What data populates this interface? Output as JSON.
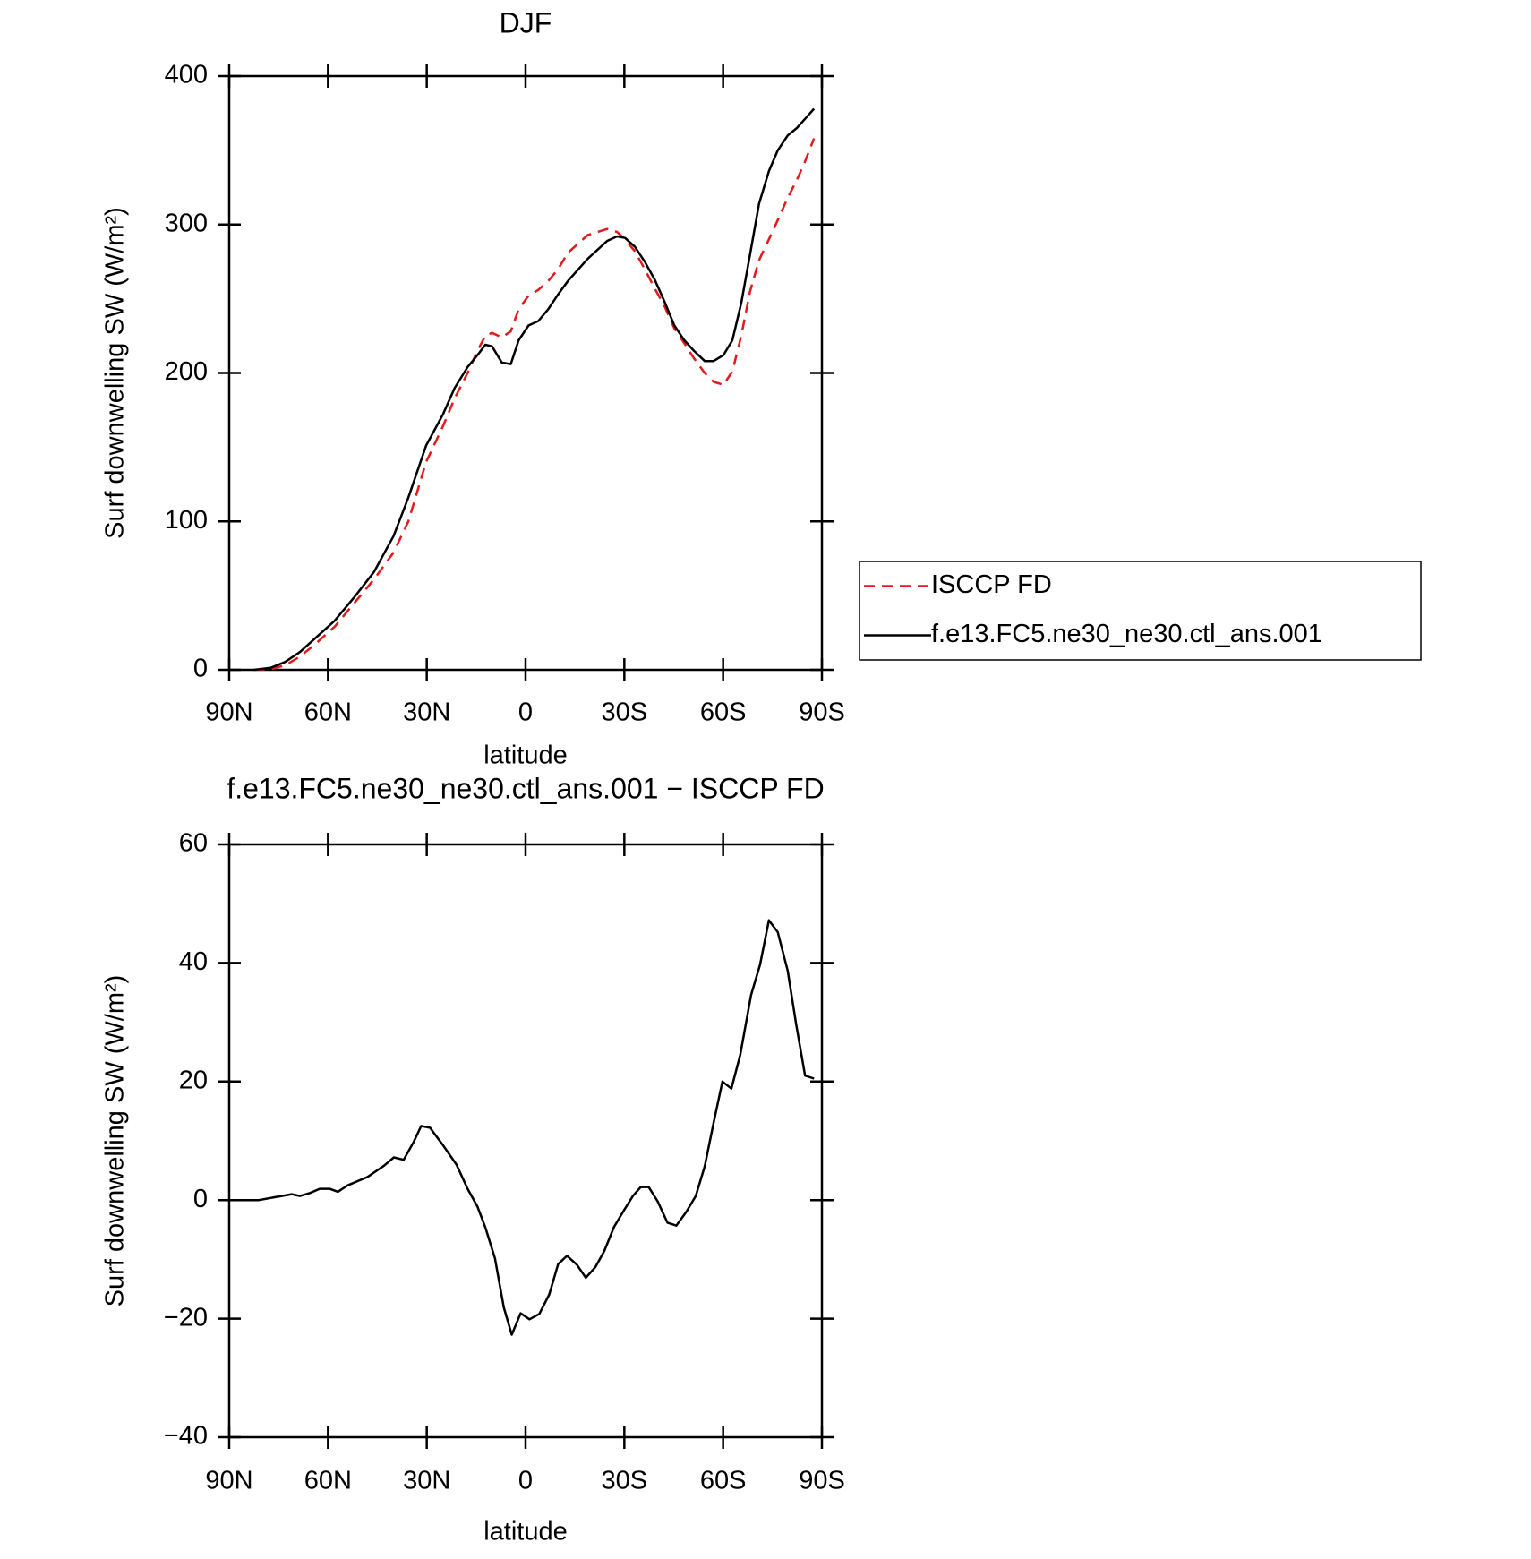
{
  "chart_data": [
    {
      "type": "line",
      "title": "DJF",
      "xlabel": "latitude",
      "ylabel": "Surf downwelling SW (W/m²)",
      "x": [
        82.5,
        77.4,
        73.0,
        68.5,
        64.0,
        58.0,
        52.0,
        46.0,
        40.1,
        35.6,
        30.2,
        25.1,
        21.5,
        17.6,
        14.6,
        12.2,
        10.2,
        7.2,
        4.5,
        2.1,
        -0.9,
        -3.9,
        -6.9,
        -9.9,
        -12.9,
        -18.9,
        -24.8,
        -27.8,
        -30.2,
        -33.2,
        -36.2,
        -39.2,
        -42.2,
        -45.2,
        -48.2,
        -51.1,
        -54.4,
        -57.1,
        -60.1,
        -62.8,
        -65.5,
        -68.2,
        -70.9,
        -73.9,
        -76.6,
        -79.6,
        -82.4,
        -84.8,
        -87.6
      ],
      "series": [
        {
          "name": "ISCCP FD",
          "color": "#e31a1c",
          "dashed": true,
          "values": [
            0,
            0.5,
            3,
            9,
            17,
            29,
            45,
            61,
            79,
            100,
            140,
            164,
            183,
            200,
            215,
            225,
            227,
            224,
            228,
            243,
            252,
            256,
            262,
            270,
            281,
            293,
            297,
            295,
            290,
            282,
            270,
            257,
            245,
            230,
            220,
            210,
            200,
            194,
            192,
            201,
            225,
            255,
            276,
            290,
            303,
            318,
            330,
            342,
            358
          ]
        },
        {
          "name": "f.e13.FC5.ne30_ne30.ctl_ans.001",
          "color": "#000000",
          "dashed": false,
          "values": [
            0,
            1.3,
            5.3,
            12,
            21,
            33,
            49,
            66,
            90,
            116,
            151,
            172,
            190,
            204,
            212,
            219,
            218,
            207,
            206,
            222,
            232,
            235,
            243,
            253,
            262,
            277,
            289,
            292,
            291,
            285,
            275,
            263,
            248,
            232,
            222,
            215,
            208,
            208,
            212,
            222,
            247,
            280,
            314,
            336,
            350,
            360,
            365,
            371,
            378
          ]
        }
      ],
      "xlim": [
        90,
        -90
      ],
      "xticks": [
        {
          "value": 90,
          "label": "90N"
        },
        {
          "value": 60,
          "label": "60N"
        },
        {
          "value": 30,
          "label": "30N"
        },
        0,
        {
          "value": -30,
          "label": "30S"
        },
        {
          "value": -60,
          "label": "60S"
        },
        {
          "value": -90,
          "label": "90S"
        }
      ],
      "ylim": [
        0,
        400
      ],
      "yticks": [
        0,
        100,
        200,
        300,
        400
      ],
      "legend": "right"
    },
    {
      "type": "line",
      "title": "f.e13.FC5.ne30_ne30.ctl_ans.001 − ISCCP FD",
      "xlabel": "latitude",
      "ylabel": "Surf downwelling SW (W/m²)",
      "x": [
        87.6,
        81,
        76,
        71,
        68.5,
        65.5,
        62.5,
        59.5,
        57,
        54,
        48,
        43,
        40,
        37,
        34,
        31.7,
        29,
        25,
        21,
        17.6,
        14.6,
        12.2,
        9.3,
        6.6,
        4.2,
        1.5,
        -1.2,
        -4.2,
        -7.2,
        -9.9,
        -12.6,
        -15.6,
        -18.3,
        -21.2,
        -23.9,
        -26.9,
        -29.9,
        -32.6,
        -35,
        -37.4,
        -40.1,
        -43.1,
        -45.8,
        -48.8,
        -51.7,
        -54.4,
        -57.1,
        -59.8,
        -62.5,
        -65.2,
        -68.5,
        -71.2,
        -73.9,
        -76.6,
        -79.6,
        -82.2,
        -84.9,
        -87.6
      ],
      "values": [
        0,
        0,
        0.5,
        1,
        0.7,
        1.2,
        1.9,
        1.9,
        1.4,
        2.5,
        3.9,
        5.8,
        7.2,
        6.8,
        9.8,
        12.5,
        12.2,
        9.2,
        6,
        1.9,
        -1.1,
        -4.6,
        -9.8,
        -18.1,
        -22.7,
        -19.1,
        -20.1,
        -19.2,
        -15.9,
        -10.8,
        -9.4,
        -10.9,
        -13.1,
        -11.3,
        -8.6,
        -4.5,
        -1.7,
        0.7,
        2.2,
        2.2,
        -0.2,
        -3.8,
        -4.3,
        -2,
        0.7,
        5.7,
        13,
        20,
        18.8,
        24.5,
        34.6,
        39.7,
        47.2,
        45.2,
        38.7,
        29.6,
        21,
        20.5
      ],
      "color": "#000000",
      "xlim": [
        90,
        -90
      ],
      "xticks": [
        {
          "value": 90,
          "label": "90N"
        },
        {
          "value": 60,
          "label": "60N"
        },
        {
          "value": 30,
          "label": "30N"
        },
        0,
        {
          "value": -30,
          "label": "30S"
        },
        {
          "value": -60,
          "label": "60S"
        },
        {
          "value": -90,
          "label": "90S"
        }
      ],
      "ylim": [
        -40,
        60
      ],
      "yticks": [
        {
          "value": -40,
          "label": "−40"
        },
        {
          "value": -20,
          "label": "−20"
        },
        0,
        20,
        40,
        60
      ]
    }
  ]
}
